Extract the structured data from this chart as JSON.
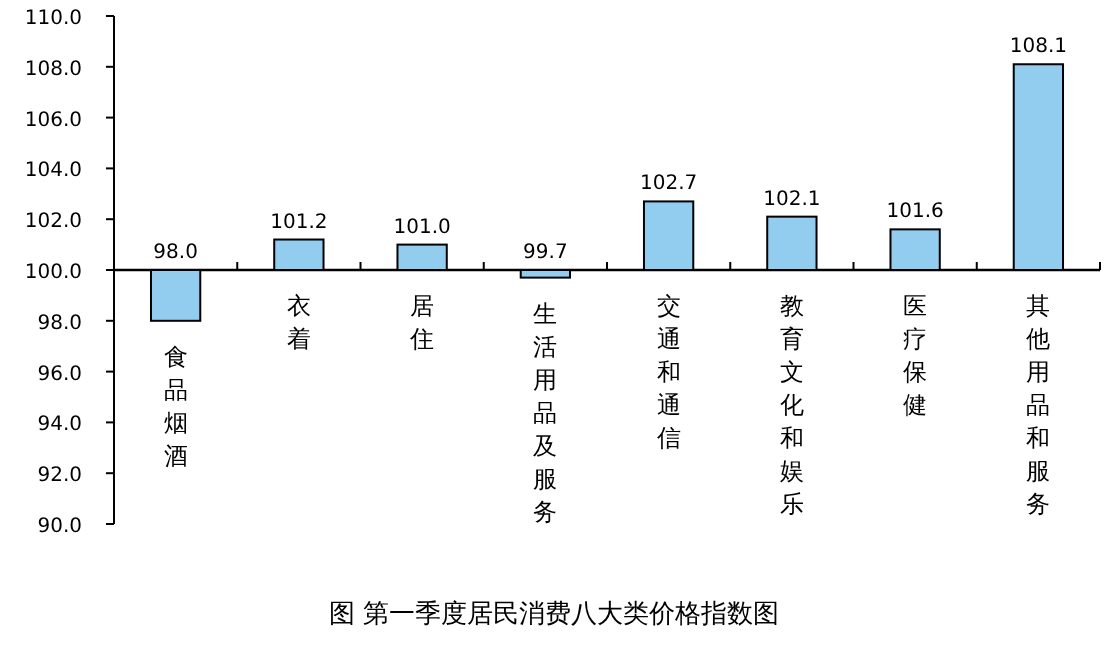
{
  "chart_data": {
    "type": "bar",
    "title": "图 第一季度居民消费八大类价格指数图",
    "categories": [
      "食品烟酒",
      "衣着",
      "居住",
      "生活用品及服务",
      "交通和通信",
      "教育文化和娱乐",
      "医疗保健",
      "其他用品和服务"
    ],
    "base": [
      100,
      100,
      100,
      100,
      100,
      100,
      100,
      100
    ],
    "values": [
      -2.0,
      1.2,
      1.0,
      -0.3,
      2.7,
      2.1,
      1.6,
      8.1
    ],
    "value_labels": [
      "98.0",
      "101.2",
      "101.0",
      "99.7",
      "102.7",
      "102.1",
      "101.6",
      "108.1"
    ],
    "color": "#92cdef",
    "ylim": [
      90,
      110
    ],
    "yticks": [
      {
        "value": 90,
        "label": "90.0"
      },
      {
        "value": 92,
        "label": "92.0"
      },
      {
        "value": 94,
        "label": "94.0"
      },
      {
        "value": 96,
        "label": "96.0"
      },
      {
        "value": 98,
        "label": "98.0"
      },
      {
        "value": 100,
        "label": "100.0"
      },
      {
        "value": 102,
        "label": "102.0"
      },
      {
        "value": 104,
        "label": "104.0"
      },
      {
        "value": 106,
        "label": "106.0"
      },
      {
        "value": 108,
        "label": "108.0"
      },
      {
        "value": 110,
        "label": "110.0"
      }
    ]
  }
}
